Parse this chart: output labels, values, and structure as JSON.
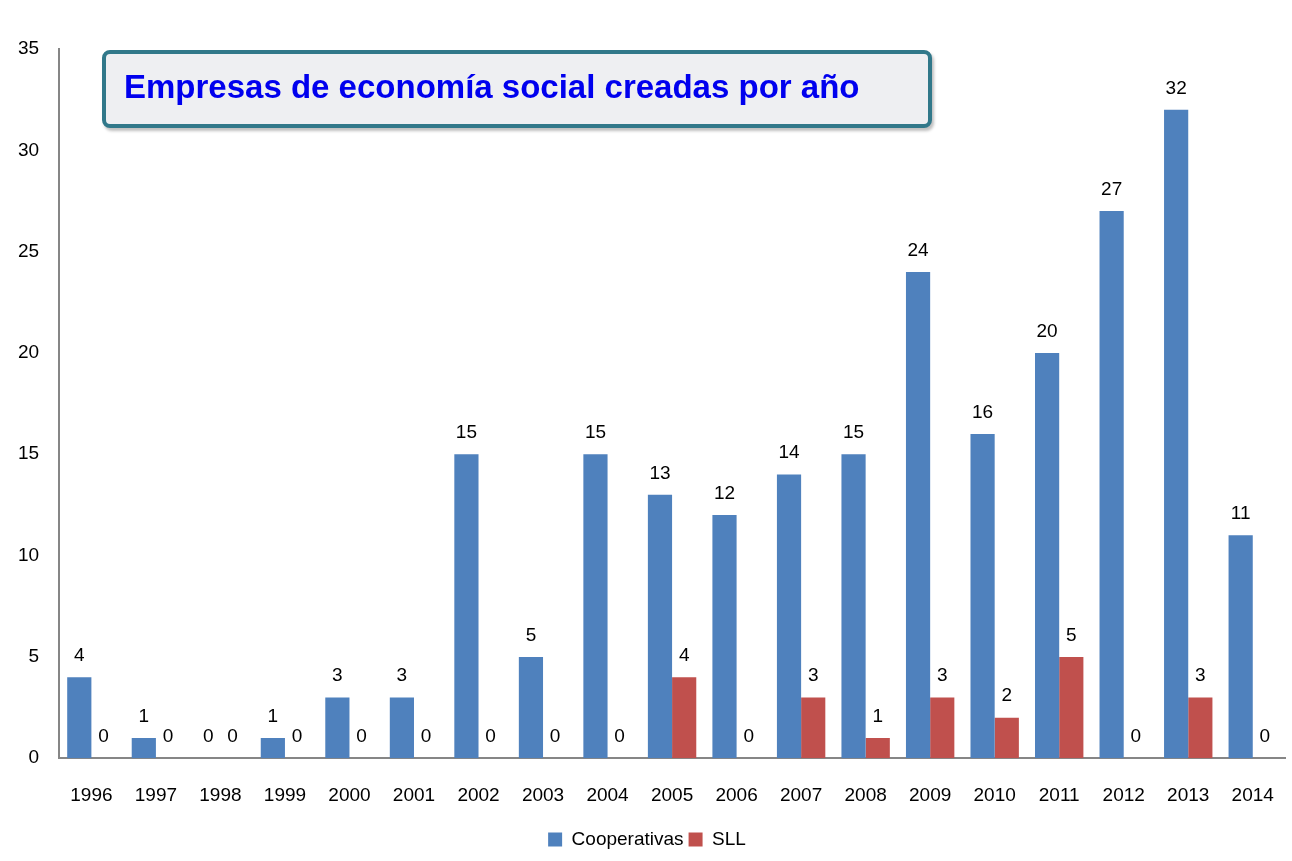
{
  "chart_data": {
    "type": "bar",
    "title": "Empresas de economía social creadas por año",
    "categories": [
      "1996",
      "1997",
      "1998",
      "1999",
      "2000",
      "2001",
      "2002",
      "2003",
      "2004",
      "2005",
      "2006",
      "2007",
      "2008",
      "2009",
      "2010",
      "2011",
      "2012",
      "2013",
      "2014"
    ],
    "series": [
      {
        "name": "Cooperativas",
        "color": "#4f81bd",
        "values": [
          4,
          1,
          0,
          1,
          3,
          3,
          15,
          5,
          15,
          13,
          12,
          14,
          15,
          24,
          16,
          20,
          27,
          32,
          11
        ]
      },
      {
        "name": "SLL",
        "color": "#c0504d",
        "values": [
          0,
          0,
          0,
          0,
          0,
          0,
          0,
          0,
          0,
          4,
          0,
          3,
          1,
          3,
          2,
          5,
          0,
          3,
          0
        ]
      }
    ],
    "ylim": [
      0,
      35
    ],
    "yticks": [
      0,
      5,
      10,
      15,
      20,
      25,
      30,
      35
    ],
    "grid": false,
    "legend": "bottom",
    "data_labels": true
  }
}
